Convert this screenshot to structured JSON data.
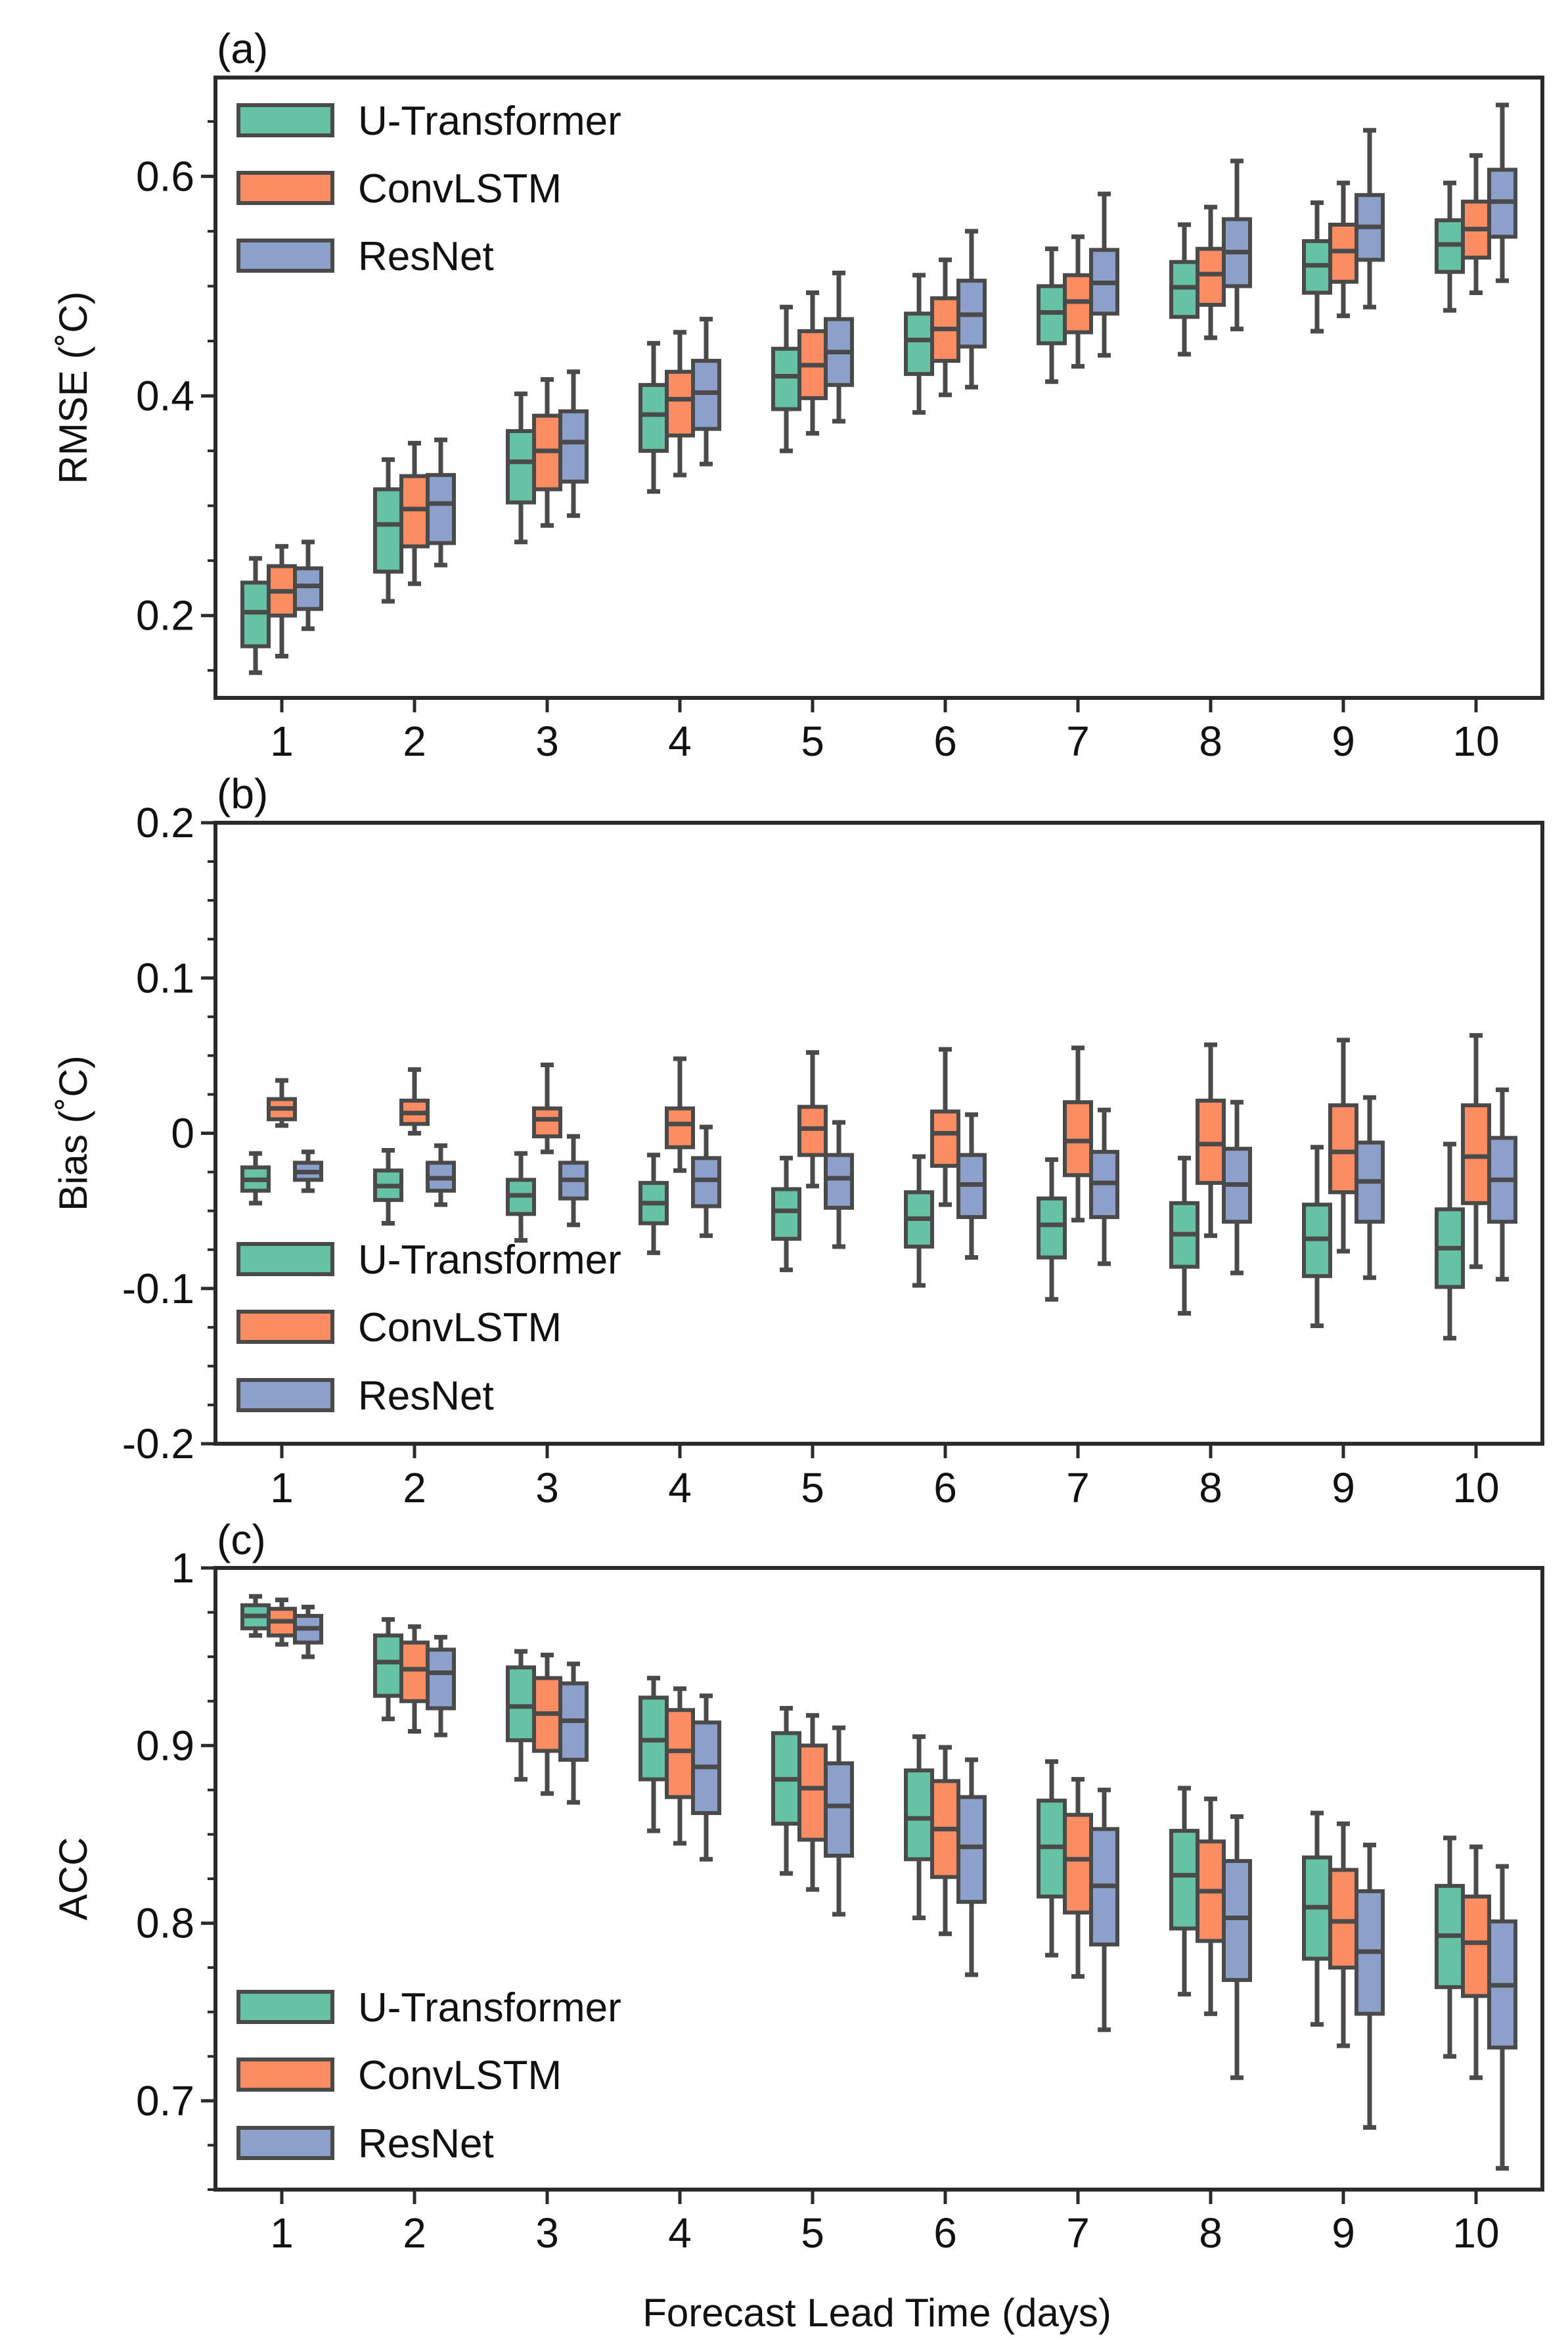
{
  "chart_data": [
    {
      "type": "box",
      "panel_label": "(a)",
      "ylabel": "RMSE (˚C)",
      "xlabel": "",
      "ylim": [
        0.125,
        0.69
      ],
      "yticks": [
        0.2,
        0.4,
        0.6
      ],
      "ytick_labels": [
        "0.2",
        "0.4",
        "0.6"
      ],
      "minor_step": 0.05,
      "legend_position": "top-left",
      "categories": [
        "1",
        "2",
        "3",
        "4",
        "5",
        "6",
        "7",
        "8",
        "9",
        "10"
      ],
      "series": [
        {
          "name": "U-Transformer",
          "color": "#66c2a5",
          "boxes": [
            {
              "min": 0.148,
              "q1": 0.172,
              "median": 0.203,
              "q3": 0.23,
              "max": 0.252
            },
            {
              "min": 0.213,
              "q1": 0.24,
              "median": 0.283,
              "q3": 0.315,
              "max": 0.342
            },
            {
              "min": 0.267,
              "q1": 0.303,
              "median": 0.34,
              "q3": 0.368,
              "max": 0.402
            },
            {
              "min": 0.313,
              "q1": 0.35,
              "median": 0.383,
              "q3": 0.41,
              "max": 0.448
            },
            {
              "min": 0.35,
              "q1": 0.388,
              "median": 0.418,
              "q3": 0.443,
              "max": 0.481
            },
            {
              "min": 0.385,
              "q1": 0.42,
              "median": 0.451,
              "q3": 0.475,
              "max": 0.51
            },
            {
              "min": 0.413,
              "q1": 0.448,
              "median": 0.476,
              "q3": 0.5,
              "max": 0.534
            },
            {
              "min": 0.438,
              "q1": 0.472,
              "median": 0.499,
              "q3": 0.522,
              "max": 0.556
            },
            {
              "min": 0.459,
              "q1": 0.494,
              "median": 0.519,
              "q3": 0.541,
              "max": 0.576
            },
            {
              "min": 0.478,
              "q1": 0.513,
              "median": 0.538,
              "q3": 0.56,
              "max": 0.594
            }
          ]
        },
        {
          "name": "ConvLSTM",
          "color": "#fc8d62",
          "boxes": [
            {
              "min": 0.163,
              "q1": 0.2,
              "median": 0.222,
              "q3": 0.245,
              "max": 0.263
            },
            {
              "min": 0.229,
              "q1": 0.263,
              "median": 0.297,
              "q3": 0.327,
              "max": 0.357
            },
            {
              "min": 0.282,
              "q1": 0.315,
              "median": 0.35,
              "q3": 0.382,
              "max": 0.415
            },
            {
              "min": 0.328,
              "q1": 0.364,
              "median": 0.397,
              "q3": 0.422,
              "max": 0.458
            },
            {
              "min": 0.366,
              "q1": 0.398,
              "median": 0.428,
              "q3": 0.459,
              "max": 0.494
            },
            {
              "min": 0.401,
              "q1": 0.432,
              "median": 0.461,
              "q3": 0.489,
              "max": 0.524
            },
            {
              "min": 0.427,
              "q1": 0.458,
              "median": 0.486,
              "q3": 0.51,
              "max": 0.545
            },
            {
              "min": 0.453,
              "q1": 0.483,
              "median": 0.511,
              "q3": 0.534,
              "max": 0.572
            },
            {
              "min": 0.473,
              "q1": 0.504,
              "median": 0.532,
              "q3": 0.556,
              "max": 0.594
            },
            {
              "min": 0.494,
              "q1": 0.526,
              "median": 0.552,
              "q3": 0.577,
              "max": 0.619
            }
          ]
        },
        {
          "name": "ResNet",
          "color": "#8da0cb",
          "boxes": [
            {
              "min": 0.188,
              "q1": 0.206,
              "median": 0.227,
              "q3": 0.243,
              "max": 0.267
            },
            {
              "min": 0.246,
              "q1": 0.266,
              "median": 0.302,
              "q3": 0.328,
              "max": 0.36
            },
            {
              "min": 0.291,
              "q1": 0.322,
              "median": 0.358,
              "q3": 0.386,
              "max": 0.422
            },
            {
              "min": 0.338,
              "q1": 0.37,
              "median": 0.403,
              "q3": 0.432,
              "max": 0.47
            },
            {
              "min": 0.377,
              "q1": 0.41,
              "median": 0.44,
              "q3": 0.47,
              "max": 0.512
            },
            {
              "min": 0.408,
              "q1": 0.445,
              "median": 0.474,
              "q3": 0.505,
              "max": 0.55
            },
            {
              "min": 0.437,
              "q1": 0.475,
              "median": 0.503,
              "q3": 0.533,
              "max": 0.584
            },
            {
              "min": 0.461,
              "q1": 0.5,
              "median": 0.531,
              "q3": 0.561,
              "max": 0.614
            },
            {
              "min": 0.481,
              "q1": 0.524,
              "median": 0.554,
              "q3": 0.583,
              "max": 0.642
            },
            {
              "min": 0.505,
              "q1": 0.545,
              "median": 0.577,
              "q3": 0.606,
              "max": 0.665
            }
          ]
        }
      ]
    },
    {
      "type": "box",
      "panel_label": "(b)",
      "ylabel": "Bias (˚C)",
      "xlabel": "",
      "ylim": [
        -0.2,
        0.2
      ],
      "yticks": [
        -0.2,
        -0.1,
        0,
        0.1,
        0.2
      ],
      "ytick_labels": [
        "-0.2",
        "-0.1",
        "0",
        "0.1",
        "0.2"
      ],
      "minor_step": 0.025,
      "legend_position": "bottom-left",
      "categories": [
        "1",
        "2",
        "3",
        "4",
        "5",
        "6",
        "7",
        "8",
        "9",
        "10"
      ],
      "series": [
        {
          "name": "U-Transformer",
          "color": "#66c2a5",
          "boxes": [
            {
              "min": -0.045,
              "q1": -0.037,
              "median": -0.03,
              "q3": -0.022,
              "max": -0.013
            },
            {
              "min": -0.058,
              "q1": -0.043,
              "median": -0.034,
              "q3": -0.024,
              "max": -0.011
            },
            {
              "min": -0.069,
              "q1": -0.052,
              "median": -0.04,
              "q3": -0.03,
              "max": -0.013
            },
            {
              "min": -0.077,
              "q1": -0.058,
              "median": -0.045,
              "q3": -0.032,
              "max": -0.014
            },
            {
              "min": -0.088,
              "q1": -0.068,
              "median": -0.05,
              "q3": -0.036,
              "max": -0.016
            },
            {
              "min": -0.098,
              "q1": -0.073,
              "median": -0.055,
              "q3": -0.038,
              "max": -0.015
            },
            {
              "min": -0.107,
              "q1": -0.08,
              "median": -0.059,
              "q3": -0.042,
              "max": -0.017
            },
            {
              "min": -0.116,
              "q1": -0.086,
              "median": -0.065,
              "q3": -0.045,
              "max": -0.016
            },
            {
              "min": -0.124,
              "q1": -0.092,
              "median": -0.068,
              "q3": -0.046,
              "max": -0.009
            },
            {
              "min": -0.132,
              "q1": -0.099,
              "median": -0.074,
              "q3": -0.049,
              "max": -0.007
            }
          ]
        },
        {
          "name": "ConvLSTM",
          "color": "#fc8d62",
          "boxes": [
            {
              "min": 0.005,
              "q1": 0.009,
              "median": 0.016,
              "q3": 0.022,
              "max": 0.034
            },
            {
              "min": 0.0,
              "q1": 0.006,
              "median": 0.013,
              "q3": 0.021,
              "max": 0.041
            },
            {
              "min": -0.012,
              "q1": -0.002,
              "median": 0.009,
              "q3": 0.016,
              "max": 0.044
            },
            {
              "min": -0.024,
              "q1": -0.009,
              "median": 0.006,
              "q3": 0.016,
              "max": 0.048
            },
            {
              "min": -0.034,
              "q1": -0.014,
              "median": 0.003,
              "q3": 0.017,
              "max": 0.052
            },
            {
              "min": -0.046,
              "q1": -0.021,
              "median": 0.0,
              "q3": 0.014,
              "max": 0.054
            },
            {
              "min": -0.056,
              "q1": -0.027,
              "median": -0.005,
              "q3": 0.02,
              "max": 0.055
            },
            {
              "min": -0.066,
              "q1": -0.032,
              "median": -0.007,
              "q3": 0.021,
              "max": 0.057
            },
            {
              "min": -0.076,
              "q1": -0.038,
              "median": -0.012,
              "q3": 0.018,
              "max": 0.06
            },
            {
              "min": -0.086,
              "q1": -0.045,
              "median": -0.015,
              "q3": 0.018,
              "max": 0.063
            }
          ]
        },
        {
          "name": "ResNet",
          "color": "#8da0cb",
          "boxes": [
            {
              "min": -0.037,
              "q1": -0.03,
              "median": -0.025,
              "q3": -0.019,
              "max": -0.012
            },
            {
              "min": -0.046,
              "q1": -0.037,
              "median": -0.029,
              "q3": -0.019,
              "max": -0.008
            },
            {
              "min": -0.059,
              "q1": -0.042,
              "median": -0.03,
              "q3": -0.019,
              "max": -0.002
            },
            {
              "min": -0.066,
              "q1": -0.047,
              "median": -0.03,
              "q3": -0.016,
              "max": 0.004
            },
            {
              "min": -0.073,
              "q1": -0.048,
              "median": -0.029,
              "q3": -0.014,
              "max": 0.007
            },
            {
              "min": -0.08,
              "q1": -0.054,
              "median": -0.033,
              "q3": -0.014,
              "max": 0.012
            },
            {
              "min": -0.084,
              "q1": -0.054,
              "median": -0.032,
              "q3": -0.012,
              "max": 0.015
            },
            {
              "min": -0.09,
              "q1": -0.057,
              "median": -0.033,
              "q3": -0.01,
              "max": 0.02
            },
            {
              "min": -0.093,
              "q1": -0.057,
              "median": -0.031,
              "q3": -0.006,
              "max": 0.023
            },
            {
              "min": -0.094,
              "q1": -0.057,
              "median": -0.03,
              "q3": -0.003,
              "max": 0.028
            }
          ]
        }
      ]
    },
    {
      "type": "box",
      "panel_label": "(c)",
      "ylabel": "ACC",
      "xlabel": "Forecast Lead Time (days)",
      "ylim": [
        0.65,
        1.0
      ],
      "yticks": [
        0.7,
        0.8,
        0.9,
        1.0
      ],
      "ytick_labels": [
        "0.7",
        "0.8",
        "0.9",
        "1"
      ],
      "minor_step": 0.025,
      "legend_position": "bottom-left",
      "categories": [
        "1",
        "2",
        "3",
        "4",
        "5",
        "6",
        "7",
        "8",
        "9",
        "10"
      ],
      "series": [
        {
          "name": "U-Transformer",
          "color": "#66c2a5",
          "boxes": [
            {
              "min": 0.962,
              "q1": 0.966,
              "median": 0.973,
              "q3": 0.979,
              "max": 0.984
            },
            {
              "min": 0.915,
              "q1": 0.928,
              "median": 0.947,
              "q3": 0.962,
              "max": 0.971
            },
            {
              "min": 0.881,
              "q1": 0.903,
              "median": 0.922,
              "q3": 0.944,
              "max": 0.953
            },
            {
              "min": 0.852,
              "q1": 0.881,
              "median": 0.903,
              "q3": 0.927,
              "max": 0.938
            },
            {
              "min": 0.828,
              "q1": 0.856,
              "median": 0.881,
              "q3": 0.907,
              "max": 0.921
            },
            {
              "min": 0.803,
              "q1": 0.836,
              "median": 0.859,
              "q3": 0.886,
              "max": 0.905
            },
            {
              "min": 0.782,
              "q1": 0.815,
              "median": 0.843,
              "q3": 0.869,
              "max": 0.891
            },
            {
              "min": 0.76,
              "q1": 0.797,
              "median": 0.827,
              "q3": 0.852,
              "max": 0.876
            },
            {
              "min": 0.743,
              "q1": 0.78,
              "median": 0.809,
              "q3": 0.837,
              "max": 0.862
            },
            {
              "min": 0.725,
              "q1": 0.764,
              "median": 0.793,
              "q3": 0.821,
              "max": 0.848
            }
          ]
        },
        {
          "name": "ConvLSTM",
          "color": "#fc8d62",
          "boxes": [
            {
              "min": 0.957,
              "q1": 0.962,
              "median": 0.97,
              "q3": 0.977,
              "max": 0.982
            },
            {
              "min": 0.908,
              "q1": 0.925,
              "median": 0.943,
              "q3": 0.958,
              "max": 0.967
            },
            {
              "min": 0.873,
              "q1": 0.897,
              "median": 0.918,
              "q3": 0.938,
              "max": 0.951
            },
            {
              "min": 0.845,
              "q1": 0.871,
              "median": 0.897,
              "q3": 0.92,
              "max": 0.932
            },
            {
              "min": 0.819,
              "q1": 0.847,
              "median": 0.876,
              "q3": 0.9,
              "max": 0.917
            },
            {
              "min": 0.794,
              "q1": 0.826,
              "median": 0.853,
              "q3": 0.88,
              "max": 0.899
            },
            {
              "min": 0.77,
              "q1": 0.806,
              "median": 0.836,
              "q3": 0.861,
              "max": 0.881
            },
            {
              "min": 0.749,
              "q1": 0.79,
              "median": 0.818,
              "q3": 0.846,
              "max": 0.87
            },
            {
              "min": 0.731,
              "q1": 0.775,
              "median": 0.801,
              "q3": 0.83,
              "max": 0.856
            },
            {
              "min": 0.713,
              "q1": 0.759,
              "median": 0.789,
              "q3": 0.815,
              "max": 0.843
            }
          ]
        },
        {
          "name": "ResNet",
          "color": "#8da0cb",
          "boxes": [
            {
              "min": 0.95,
              "q1": 0.958,
              "median": 0.966,
              "q3": 0.973,
              "max": 0.978
            },
            {
              "min": 0.906,
              "q1": 0.921,
              "median": 0.941,
              "q3": 0.954,
              "max": 0.961
            },
            {
              "min": 0.868,
              "q1": 0.892,
              "median": 0.914,
              "q3": 0.935,
              "max": 0.946
            },
            {
              "min": 0.836,
              "q1": 0.862,
              "median": 0.888,
              "q3": 0.913,
              "max": 0.928
            },
            {
              "min": 0.805,
              "q1": 0.838,
              "median": 0.866,
              "q3": 0.89,
              "max": 0.91
            },
            {
              "min": 0.771,
              "q1": 0.812,
              "median": 0.843,
              "q3": 0.871,
              "max": 0.892
            },
            {
              "min": 0.74,
              "q1": 0.788,
              "median": 0.821,
              "q3": 0.853,
              "max": 0.875
            },
            {
              "min": 0.713,
              "q1": 0.768,
              "median": 0.803,
              "q3": 0.835,
              "max": 0.86
            },
            {
              "min": 0.685,
              "q1": 0.749,
              "median": 0.784,
              "q3": 0.818,
              "max": 0.844
            },
            {
              "min": 0.662,
              "q1": 0.73,
              "median": 0.765,
              "q3": 0.801,
              "max": 0.832
            }
          ]
        }
      ]
    }
  ]
}
